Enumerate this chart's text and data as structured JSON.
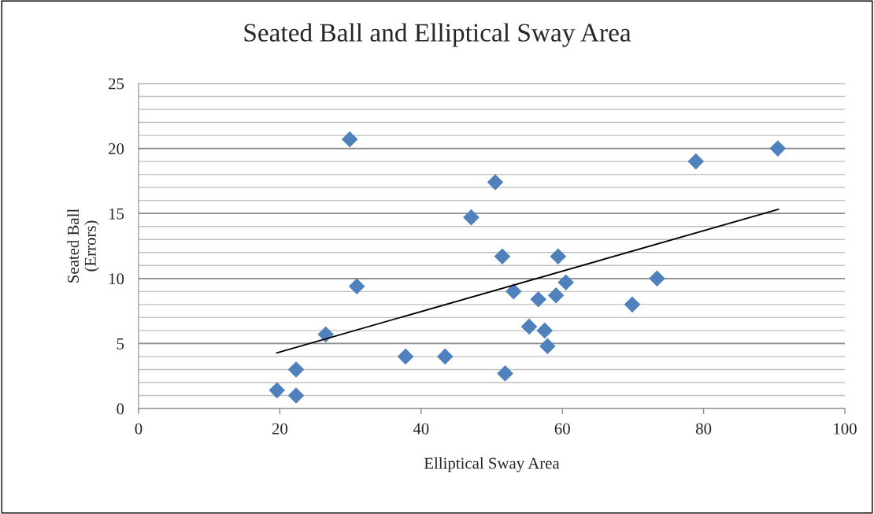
{
  "chart_data": {
    "type": "scatter",
    "title": "Seated Ball and Elliptical Sway Area",
    "xlabel": "Elliptical Sway Area",
    "ylabel": "Seated Ball\n(Errors)",
    "xlim": [
      0,
      100
    ],
    "xticks": [
      0,
      20,
      40,
      60,
      80,
      100
    ],
    "ylim": [
      0,
      25
    ],
    "yticks": [
      0,
      5,
      10,
      15,
      20,
      25
    ],
    "grid": "y",
    "legend": false,
    "marker": "diamond",
    "series": [
      {
        "color": "#4f81bd",
        "x": [
          19.6,
          22.3,
          22.3,
          26.5,
          29.9,
          30.9,
          37.8,
          43.4,
          47.1,
          50.5,
          51.5,
          51.9,
          53.1,
          55.3,
          56.6,
          57.5,
          57.9,
          59.1,
          59.4,
          60.5,
          69.9,
          73.4,
          78.9,
          90.5
        ],
        "values": [
          1.4,
          3.0,
          1.0,
          5.7,
          20.7,
          9.4,
          4.0,
          4.0,
          14.7,
          17.4,
          11.7,
          2.7,
          9.0,
          6.3,
          8.4,
          6.0,
          4.8,
          8.7,
          11.7,
          9.7,
          8.0,
          10.0,
          19.0,
          20.0
        ]
      },
      {
        "type": "line",
        "color": "#000000",
        "marker": "none",
        "x": [
          19.55,
          90.6
        ],
        "values": [
          4.28,
          15.32
        ]
      }
    ]
  }
}
